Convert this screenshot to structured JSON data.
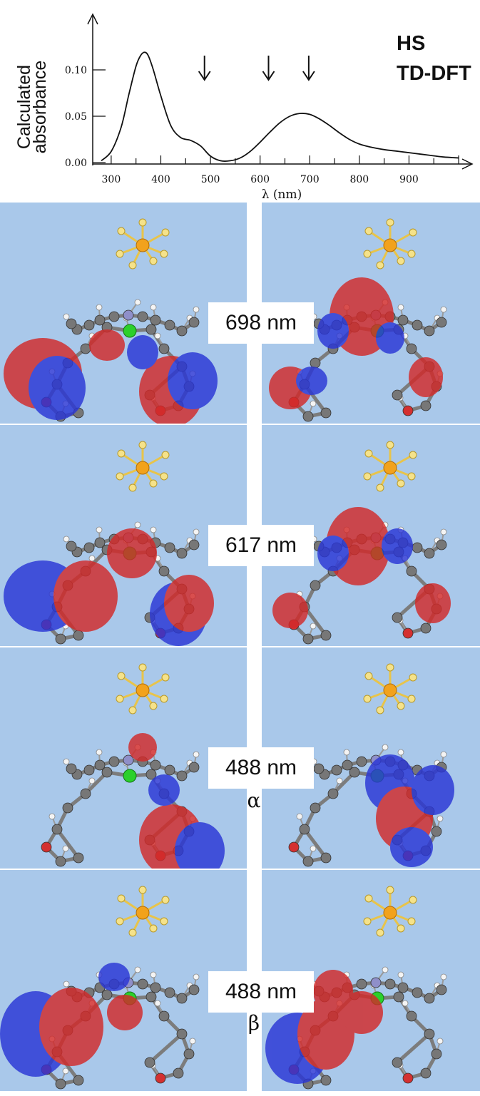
{
  "chart_data": {
    "type": "line",
    "ylabel_line1": "Calculated",
    "ylabel_line2": "absorbance",
    "xlabel": "λ (nm)",
    "xlim": [
      260,
      1010
    ],
    "ylim": [
      -0.015,
      0.145
    ],
    "yticks": [
      {
        "value": 0.1,
        "label": "0.10"
      },
      {
        "value": 0.05,
        "label": "0.05"
      },
      {
        "value": 0.0,
        "label": "0.00"
      }
    ],
    "xticks": [
      {
        "value": 300,
        "label": "300"
      },
      {
        "value": 400,
        "label": "400"
      },
      {
        "value": 500,
        "label": "500"
      },
      {
        "value": 600,
        "label": "600"
      },
      {
        "value": 700,
        "label": "700"
      },
      {
        "value": 800,
        "label": "800"
      },
      {
        "value": 900,
        "label": "900"
      }
    ],
    "annotation_1": "HS",
    "annotation_2": "TD-DFT",
    "arrows_at_nm": [
      488,
      617,
      698
    ],
    "series": [
      {
        "x": [
          280,
          300,
          320,
          335,
          350,
          360,
          368,
          375,
          385,
          400,
          420,
          440,
          460,
          480,
          500,
          520,
          540,
          560,
          580,
          600,
          620,
          640,
          660,
          680,
          700,
          720,
          740,
          760,
          780,
          800,
          820,
          850,
          880,
          910,
          940,
          970,
          1000
        ],
        "y": [
          0.002,
          0.012,
          0.038,
          0.072,
          0.104,
          0.116,
          0.119,
          0.115,
          0.1,
          0.072,
          0.04,
          0.027,
          0.024,
          0.018,
          0.007,
          0.002,
          0.002,
          0.005,
          0.012,
          0.022,
          0.033,
          0.043,
          0.05,
          0.053,
          0.052,
          0.047,
          0.04,
          0.032,
          0.025,
          0.02,
          0.017,
          0.014,
          0.012,
          0.01,
          0.008,
          0.006,
          0.005
        ]
      }
    ]
  },
  "panels": [
    {
      "wavelength": "698 nm",
      "spin": ""
    },
    {
      "wavelength": "617 nm",
      "spin": ""
    },
    {
      "wavelength": "488 nm",
      "spin": "α"
    },
    {
      "wavelength": "488 nm",
      "spin": "β"
    }
  ]
}
